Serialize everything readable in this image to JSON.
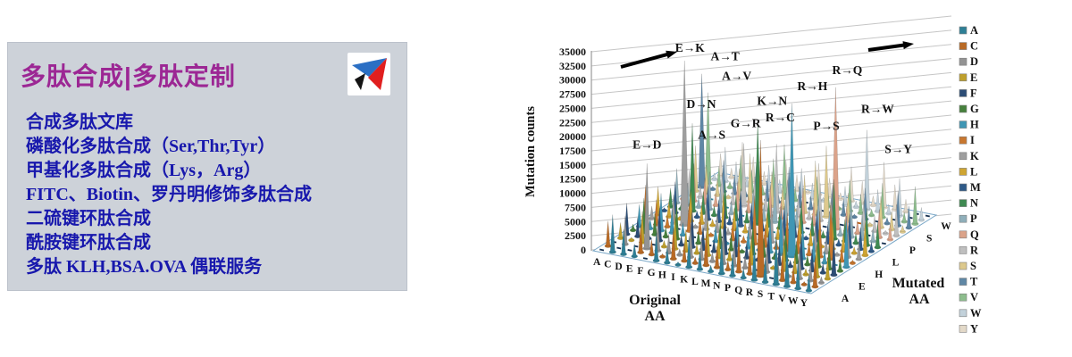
{
  "left_panel": {
    "title": "多肽合成|多肽定制",
    "services": [
      "合成多肽文库",
      "磷酸化多肽合成（Ser,Thr,Tyr）",
      "甲基化多肽合成（Lys，Arg）",
      "FITC、Biotin、罗丹明修饰多肽合成",
      "二硫键环肽合成",
      "酰胺键环肽合成",
      "多肽 KLH,BSA.OVA 偶联服务"
    ],
    "colors": {
      "panel_bg": "#cdd2d9",
      "title_text": "#9c2794",
      "service_text": "#1818ad"
    }
  },
  "logo": {
    "colors": {
      "blue": "#2b6fc4",
      "red": "#e01f1f",
      "dark": "#141414",
      "box": "#ffffff"
    }
  },
  "chart_data": {
    "type": "3d-cone",
    "title": "",
    "ylabel": "Mutation counts",
    "xlabel": "Original AA",
    "zlabel": "Mutated AA",
    "ylim": [
      0,
      35000
    ],
    "yticks": [
      0,
      2500,
      5000,
      7500,
      10000,
      12500,
      15000,
      17500,
      20000,
      22500,
      25000,
      27500,
      30000,
      32500,
      35000
    ],
    "x_categories": [
      "A",
      "C",
      "D",
      "E",
      "F",
      "G",
      "H",
      "I",
      "K",
      "L",
      "M",
      "N",
      "P",
      "Q",
      "R",
      "S",
      "T",
      "V",
      "W",
      "Y"
    ],
    "z_categories": [
      "A",
      "C",
      "D",
      "E",
      "F",
      "G",
      "H",
      "I",
      "K",
      "L",
      "M",
      "N",
      "P",
      "Q",
      "R",
      "S",
      "T",
      "V",
      "W",
      "Y"
    ],
    "z_shown_ticks": [
      "A",
      "E",
      "H",
      "L",
      "P",
      "S",
      "W"
    ],
    "legend_position": "right",
    "grid": true,
    "grid_color": "#c6c6c6",
    "axis_color": "#9a9a9a",
    "floor_fill": "#fcfeff",
    "floor_stroke": "#7aa7c7",
    "floor_dash_colors": [
      "#16304f",
      "#b55a10",
      "#2e7f96",
      "#bfa02c"
    ],
    "arrow_color": "#000000",
    "text_color": "#111111",
    "legend": [
      {
        "label": "A",
        "color": "#2e7f96"
      },
      {
        "label": "C",
        "color": "#b96a25"
      },
      {
        "label": "D",
        "color": "#939393"
      },
      {
        "label": "E",
        "color": "#bfa02c"
      },
      {
        "label": "F",
        "color": "#2c4d75"
      },
      {
        "label": "G",
        "color": "#46803c"
      },
      {
        "label": "H",
        "color": "#3f96b4"
      },
      {
        "label": "I",
        "color": "#c8772e"
      },
      {
        "label": "K",
        "color": "#9e9e9e"
      },
      {
        "label": "L",
        "color": "#cfa532"
      },
      {
        "label": "M",
        "color": "#2e5a88"
      },
      {
        "label": "N",
        "color": "#3f8a52"
      },
      {
        "label": "P",
        "color": "#8fafba"
      },
      {
        "label": "Q",
        "color": "#dba38a"
      },
      {
        "label": "R",
        "color": "#bfbfbf"
      },
      {
        "label": "S",
        "color": "#ddc98d"
      },
      {
        "label": "T",
        "color": "#5f87a5"
      },
      {
        "label": "V",
        "color": "#8dbd8d"
      },
      {
        "label": "W",
        "color": "#c2d1da"
      },
      {
        "label": "Y",
        "color": "#e3d9c8"
      }
    ],
    "annotations": [
      {
        "label": "E→K",
        "original": "E",
        "mutated": "K"
      },
      {
        "label": "A→T",
        "original": "A",
        "mutated": "T"
      },
      {
        "label": "A→V",
        "original": "A",
        "mutated": "V"
      },
      {
        "label": "D→N",
        "original": "D",
        "mutated": "N"
      },
      {
        "label": "K→N",
        "original": "K",
        "mutated": "N"
      },
      {
        "label": "R→C",
        "original": "R",
        "mutated": "C"
      },
      {
        "label": "G→R",
        "original": "G",
        "mutated": "R"
      },
      {
        "label": "A→S",
        "original": "A",
        "mutated": "S"
      },
      {
        "label": "R→H",
        "original": "R",
        "mutated": "H"
      },
      {
        "label": "R→Q",
        "original": "R",
        "mutated": "Q"
      },
      {
        "label": "P→S",
        "original": "P",
        "mutated": "S"
      },
      {
        "label": "R→W",
        "original": "R",
        "mutated": "W"
      },
      {
        "label": "E→D",
        "original": "E",
        "mutated": "D"
      },
      {
        "label": "S→Y",
        "original": "S",
        "mutated": "Y"
      }
    ],
    "values_rows_mutated_cols_original": [
      [
        0,
        6600,
        4400,
        2200,
        0,
        4950,
        2750,
        550,
        5500,
        3300,
        1100,
        6050,
        3850,
        1650,
        6600,
        4400,
        9000,
        7500,
        4950,
        2750
      ],
      [
        4400,
        0,
        0,
        4950,
        2750,
        550,
        5500,
        3300,
        1100,
        6050,
        3850,
        1650,
        6600,
        4400,
        24000,
        0,
        4950,
        2750,
        550,
        5500
      ],
      [
        0,
        4950,
        0,
        15000,
        5500,
        3300,
        1100,
        6050,
        3850,
        1650,
        6600,
        4400,
        2200,
        0,
        4950,
        2750,
        550,
        5500,
        3300,
        1100
      ],
      [
        2750,
        550,
        5500,
        0,
        1100,
        6050,
        3850,
        1650,
        6600,
        4400,
        2200,
        0,
        4950,
        2750,
        550,
        5500,
        3300,
        1100,
        6050,
        3850
      ],
      [
        5500,
        3300,
        1100,
        6050,
        0,
        1650,
        6600,
        4400,
        2200,
        9000,
        4950,
        2750,
        550,
        5500,
        3300,
        1100,
        6050,
        3850,
        1650,
        6600
      ],
      [
        1100,
        6050,
        3850,
        1650,
        6600,
        0,
        2200,
        0,
        4950,
        2750,
        550,
        5500,
        3300,
        1100,
        6050,
        3850,
        1650,
        6600,
        4400,
        2200
      ],
      [
        3850,
        1650,
        6600,
        4400,
        2200,
        0,
        0,
        2750,
        550,
        5500,
        3300,
        1100,
        6050,
        8500,
        27000,
        6600,
        4400,
        2200,
        0,
        9000
      ],
      [
        6600,
        4400,
        2200,
        0,
        4950,
        2750,
        550,
        0,
        3300,
        1100,
        8500,
        3850,
        1650,
        6600,
        4400,
        2200,
        8000,
        10000,
        2750,
        550
      ],
      [
        2200,
        0,
        4950,
        29000,
        550,
        5500,
        3300,
        1100,
        0,
        3850,
        1650,
        6600,
        4400,
        2200,
        0,
        4950,
        2750,
        550,
        5500,
        3300
      ],
      [
        4950,
        2750,
        550,
        5500,
        3300,
        1100,
        6050,
        3850,
        1650,
        0,
        4400,
        2200,
        0,
        4950,
        2750,
        550,
        5500,
        3300,
        1100,
        6050
      ],
      [
        550,
        5500,
        3300,
        1100,
        6050,
        3850,
        1650,
        6600,
        4400,
        2200,
        0,
        4950,
        2750,
        550,
        5500,
        3300,
        1100,
        6050,
        3850,
        1650
      ],
      [
        3300,
        1100,
        15500,
        3850,
        1650,
        6600,
        4400,
        2200,
        18000,
        4950,
        2750,
        0,
        5500,
        3300,
        1100,
        10500,
        3850,
        1650,
        6600,
        4400
      ],
      [
        6050,
        3850,
        1650,
        6600,
        4400,
        2200,
        0,
        4950,
        2750,
        8000,
        5500,
        3300,
        0,
        6050,
        3850,
        1650,
        6600,
        4400,
        2200,
        0
      ],
      [
        1650,
        6600,
        4400,
        2200,
        0,
        4950,
        2750,
        550,
        5500,
        3300,
        1100,
        6050,
        3850,
        0,
        25000,
        4400,
        2200,
        0,
        4950,
        2750
      ],
      [
        4400,
        2200,
        0,
        4950,
        2750,
        11000,
        5500,
        3300,
        12000,
        6050,
        3850,
        1650,
        6600,
        4400,
        0,
        0,
        4950,
        2750,
        550,
        5500
      ],
      [
        8000,
        4950,
        2750,
        550,
        5500,
        8500,
        1100,
        6050,
        3850,
        1650,
        6600,
        9500,
        12500,
        0,
        4950,
        0,
        550,
        5500,
        3300,
        1100
      ],
      [
        20000,
        550,
        5500,
        3300,
        1100,
        6050,
        3850,
        1650,
        6600,
        4400,
        2200,
        0,
        4950,
        2750,
        550,
        5500,
        0,
        1100,
        6050,
        3850
      ],
      [
        16000,
        3300,
        1100,
        6050,
        3850,
        1650,
        6600,
        9500,
        2200,
        0,
        4950,
        2750,
        550,
        5500,
        3300,
        1100,
        6050,
        0,
        1650,
        6600
      ],
      [
        1100,
        6050,
        3850,
        1650,
        6600,
        4400,
        2200,
        0,
        4950,
        2750,
        550,
        5500,
        3300,
        1100,
        14000,
        3850,
        1650,
        6600,
        0,
        2200
      ],
      [
        3850,
        1650,
        6600,
        4400,
        2200,
        0,
        4950,
        2750,
        550,
        5500,
        3300,
        1100,
        6050,
        3850,
        1650,
        8000,
        4400,
        2200,
        0,
        0
      ]
    ]
  }
}
